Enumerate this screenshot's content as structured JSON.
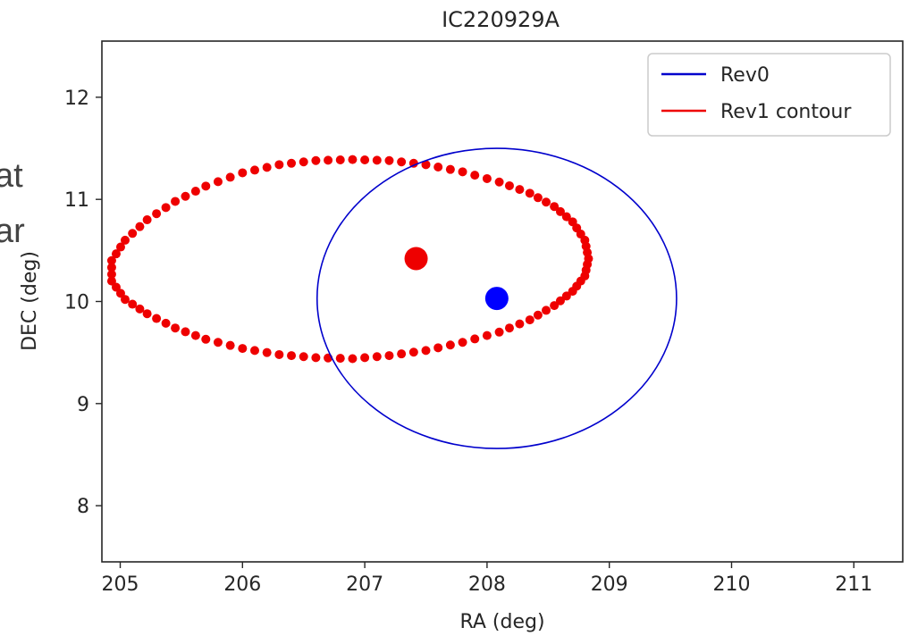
{
  "background_fragments": [
    "at",
    "ar"
  ],
  "chart_data": {
    "type": "scatter",
    "title": "IC220929A",
    "xlabel": "RA (deg)",
    "ylabel": "DEC (deg)",
    "xlim": [
      204.85,
      211.4
    ],
    "ylim": [
      7.45,
      12.55
    ],
    "xticks": [
      205,
      206,
      207,
      208,
      209,
      210,
      211
    ],
    "yticks": [
      8,
      9,
      10,
      11,
      12
    ],
    "grid": false,
    "legend_position": "top-right",
    "series": [
      {
        "name": "Rev0",
        "kind": "ellipse",
        "color": "#0000cc",
        "center": [
          208.08,
          10.03
        ],
        "semi_axis_ra": 1.47,
        "semi_axis_dec": 1.47,
        "marker_color": "#0000ff"
      },
      {
        "name": "Rev1 contour",
        "kind": "dotted-contour",
        "color": "#ee0000",
        "points": [
          [
            208.83,
            10.42
          ],
          [
            208.8,
            10.6
          ],
          [
            208.7,
            10.78
          ],
          [
            208.55,
            10.93
          ],
          [
            208.35,
            11.06
          ],
          [
            208.1,
            11.17
          ],
          [
            207.8,
            11.27
          ],
          [
            207.5,
            11.34
          ],
          [
            207.2,
            11.38
          ],
          [
            206.9,
            11.39
          ],
          [
            206.6,
            11.38
          ],
          [
            206.3,
            11.34
          ],
          [
            206.0,
            11.26
          ],
          [
            205.7,
            11.13
          ],
          [
            205.45,
            10.98
          ],
          [
            205.22,
            10.8
          ],
          [
            205.04,
            10.6
          ],
          [
            204.93,
            10.4
          ],
          [
            204.93,
            10.2
          ],
          [
            205.04,
            10.02
          ],
          [
            205.22,
            9.88
          ],
          [
            205.45,
            9.74
          ],
          [
            205.7,
            9.63
          ],
          [
            206.0,
            9.54
          ],
          [
            206.3,
            9.48
          ],
          [
            206.6,
            9.45
          ],
          [
            206.9,
            9.44
          ],
          [
            207.2,
            9.47
          ],
          [
            207.5,
            9.52
          ],
          [
            207.8,
            9.6
          ],
          [
            208.1,
            9.7
          ],
          [
            208.35,
            9.82
          ],
          [
            208.55,
            9.96
          ],
          [
            208.7,
            10.1
          ],
          [
            208.8,
            10.25
          ]
        ],
        "center": [
          207.42,
          10.42
        ],
        "marker_color": "#ee0000"
      }
    ]
  }
}
